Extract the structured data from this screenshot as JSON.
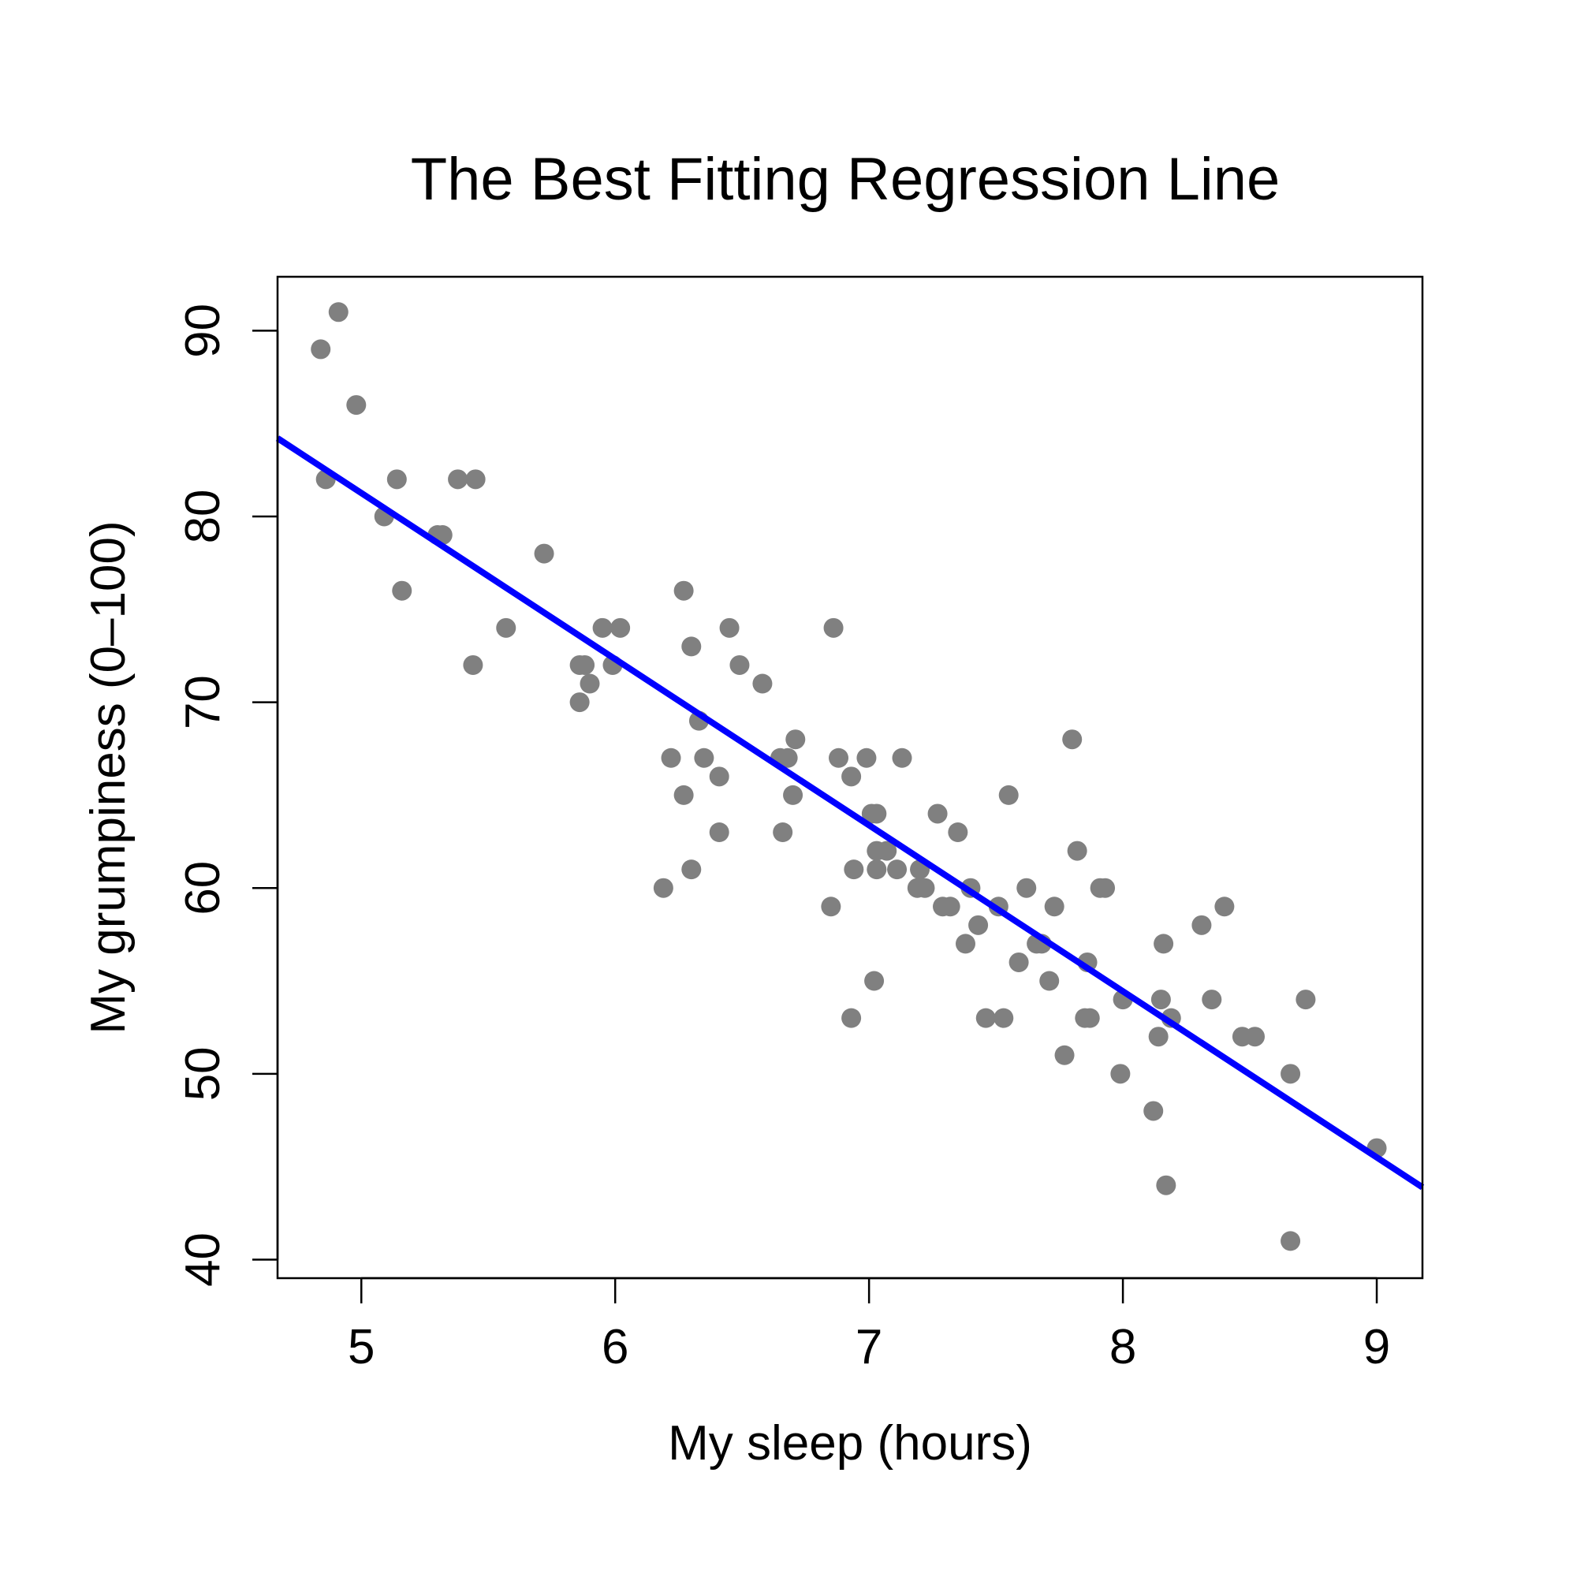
{
  "chart_data": {
    "type": "scatter",
    "title": "The Best Fitting Regression Line",
    "xlabel": "My sleep (hours)",
    "ylabel": "My grumpiness (0–100)",
    "xlim": [
      4.67,
      9.18
    ],
    "ylim": [
      39.0,
      92.9
    ],
    "x_ticks": [
      5,
      6,
      7,
      8,
      9
    ],
    "y_ticks": [
      40,
      50,
      60,
      70,
      80,
      90
    ],
    "grid": false,
    "legend": "none",
    "colors": {
      "points": "#808080",
      "regression_line": "#0000ff"
    },
    "regression_line": {
      "intercept": 125.96,
      "slope": -8.94
    },
    "series": [
      {
        "points": [
          [
            4.84,
            89
          ],
          [
            4.91,
            91
          ],
          [
            4.86,
            82
          ],
          [
            4.98,
            86
          ],
          [
            5.09,
            80
          ],
          [
            5.14,
            82
          ],
          [
            5.16,
            76
          ],
          [
            5.3,
            79
          ],
          [
            5.32,
            79
          ],
          [
            5.38,
            82
          ],
          [
            5.45,
            82
          ],
          [
            5.44,
            72
          ],
          [
            5.57,
            74
          ],
          [
            5.72,
            78
          ],
          [
            5.86,
            72
          ],
          [
            5.88,
            72
          ],
          [
            5.86,
            70
          ],
          [
            5.9,
            71
          ],
          [
            5.95,
            74
          ],
          [
            6.02,
            74
          ],
          [
            5.99,
            72
          ],
          [
            6.19,
            60
          ],
          [
            6.22,
            67
          ],
          [
            6.27,
            76
          ],
          [
            6.27,
            65
          ],
          [
            6.3,
            73
          ],
          [
            6.3,
            61
          ],
          [
            6.33,
            69
          ],
          [
            6.35,
            67
          ],
          [
            6.41,
            66
          ],
          [
            6.41,
            63
          ],
          [
            6.45,
            74
          ],
          [
            6.49,
            72
          ],
          [
            6.58,
            71
          ],
          [
            6.65,
            67
          ],
          [
            6.68,
            67
          ],
          [
            6.66,
            63
          ],
          [
            6.7,
            65
          ],
          [
            6.71,
            68
          ],
          [
            6.85,
            59
          ],
          [
            6.86,
            74
          ],
          [
            6.88,
            67
          ],
          [
            6.93,
            66
          ],
          [
            6.93,
            53
          ],
          [
            6.94,
            61
          ],
          [
            6.99,
            67
          ],
          [
            7.01,
            64
          ],
          [
            7.03,
            64
          ],
          [
            7.03,
            62
          ],
          [
            7.07,
            62
          ],
          [
            7.02,
            55
          ],
          [
            7.03,
            61
          ],
          [
            7.11,
            61
          ],
          [
            7.13,
            67
          ],
          [
            7.19,
            60
          ],
          [
            7.2,
            61
          ],
          [
            7.22,
            60
          ],
          [
            7.27,
            64
          ],
          [
            7.29,
            59
          ],
          [
            7.32,
            59
          ],
          [
            7.35,
            63
          ],
          [
            7.38,
            57
          ],
          [
            7.4,
            60
          ],
          [
            7.43,
            58
          ],
          [
            7.46,
            53
          ],
          [
            7.51,
            59
          ],
          [
            7.53,
            53
          ],
          [
            7.55,
            65
          ],
          [
            7.59,
            56
          ],
          [
            7.62,
            60
          ],
          [
            7.66,
            57
          ],
          [
            7.68,
            57
          ],
          [
            7.71,
            55
          ],
          [
            7.73,
            59
          ],
          [
            7.77,
            51
          ],
          [
            7.8,
            68
          ],
          [
            7.82,
            62
          ],
          [
            7.85,
            53
          ],
          [
            7.86,
            56
          ],
          [
            7.87,
            53
          ],
          [
            7.91,
            60
          ],
          [
            7.93,
            60
          ],
          [
            7.99,
            50
          ],
          [
            8.0,
            54
          ],
          [
            8.12,
            48
          ],
          [
            8.14,
            52
          ],
          [
            8.15,
            54
          ],
          [
            8.16,
            57
          ],
          [
            8.17,
            44
          ],
          [
            8.19,
            53
          ],
          [
            8.31,
            58
          ],
          [
            8.35,
            54
          ],
          [
            8.4,
            59
          ],
          [
            8.47,
            52
          ],
          [
            8.52,
            52
          ],
          [
            8.66,
            50
          ],
          [
            8.66,
            41
          ],
          [
            8.72,
            54
          ],
          [
            9.0,
            46
          ]
        ]
      }
    ]
  }
}
